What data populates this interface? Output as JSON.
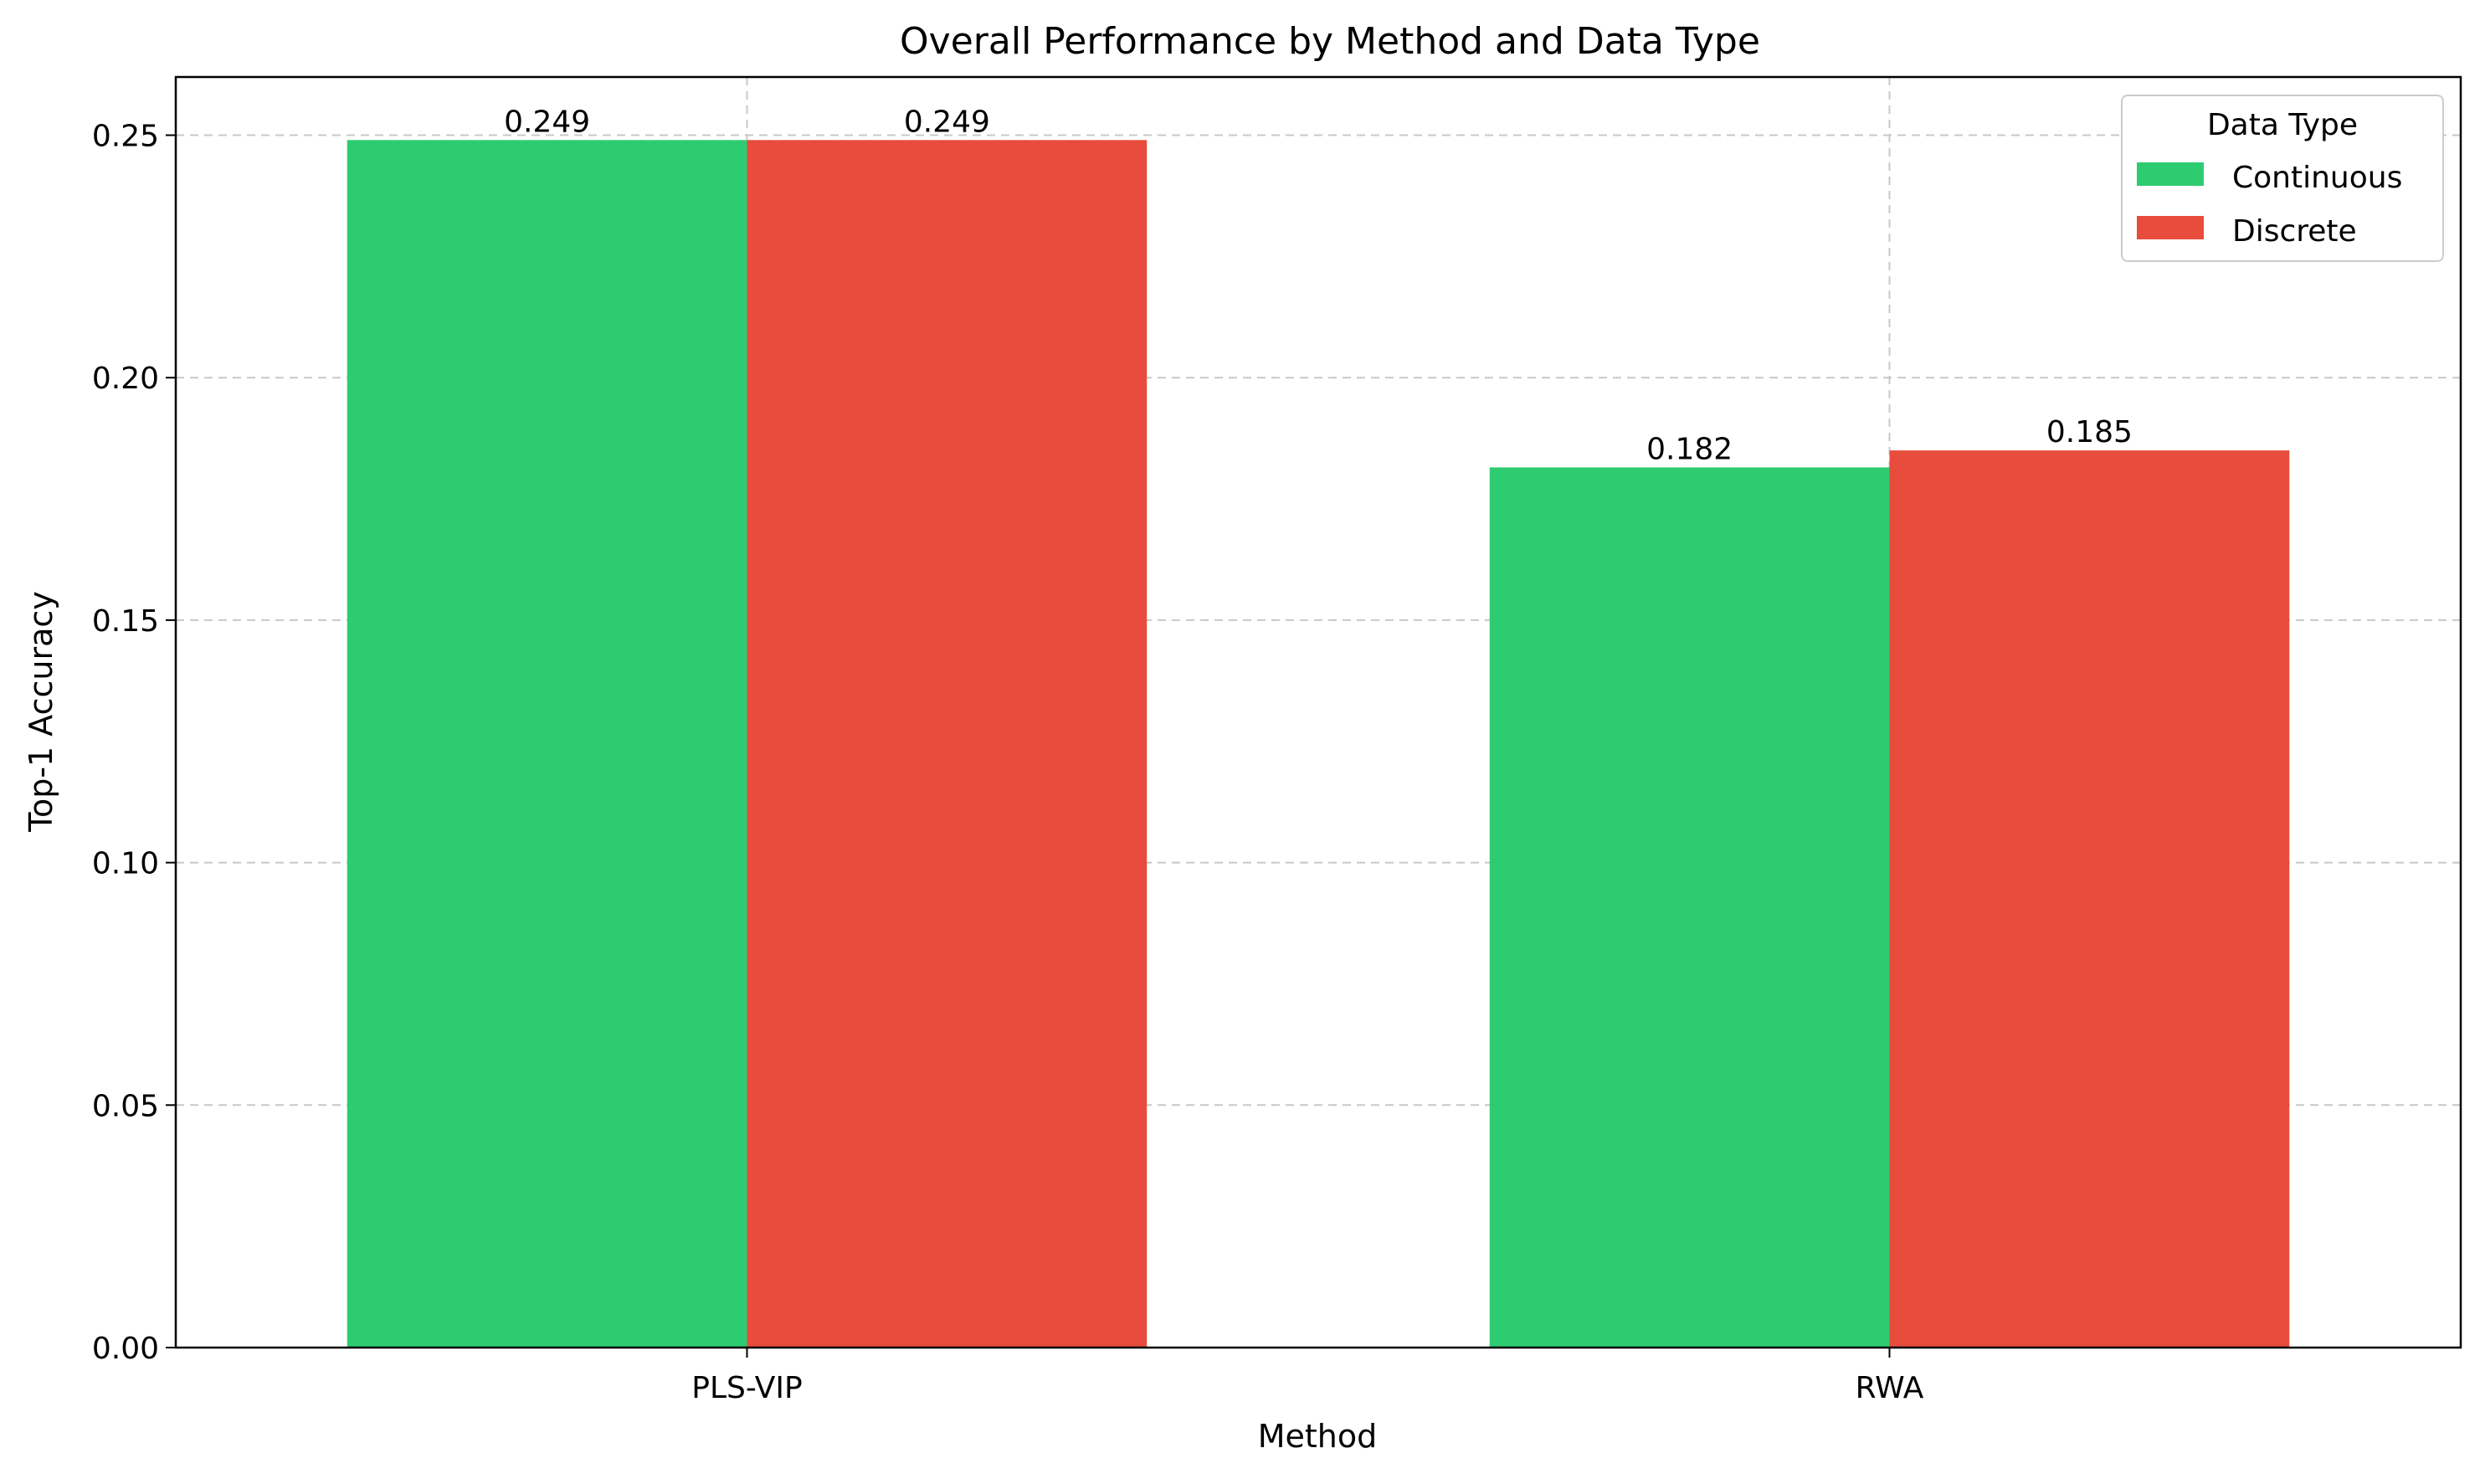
{
  "chart_data": {
    "type": "bar",
    "title": "Overall Performance by Method and Data Type",
    "xlabel": "Method",
    "ylabel": "Top-1 Accuracy",
    "categories": [
      "PLS-VIP",
      "RWA"
    ],
    "series": [
      {
        "name": "Continuous",
        "color": "#2ecc71",
        "values": [
          0.249,
          0.1815
        ],
        "labels": [
          "0.249",
          "0.182"
        ]
      },
      {
        "name": "Discrete",
        "color": "#e74c3c",
        "values": [
          0.249,
          0.185
        ],
        "labels": [
          "0.249",
          "0.185"
        ]
      }
    ],
    "ylim": [
      0,
      0.262
    ],
    "yticks": [
      0.0,
      0.05,
      0.1,
      0.15,
      0.2,
      0.25
    ],
    "ytick_labels": [
      "0.00",
      "0.05",
      "0.10",
      "0.15",
      "0.20",
      "0.25"
    ],
    "grid": true,
    "legend": {
      "title": "Data Type",
      "position": "top-right"
    }
  }
}
